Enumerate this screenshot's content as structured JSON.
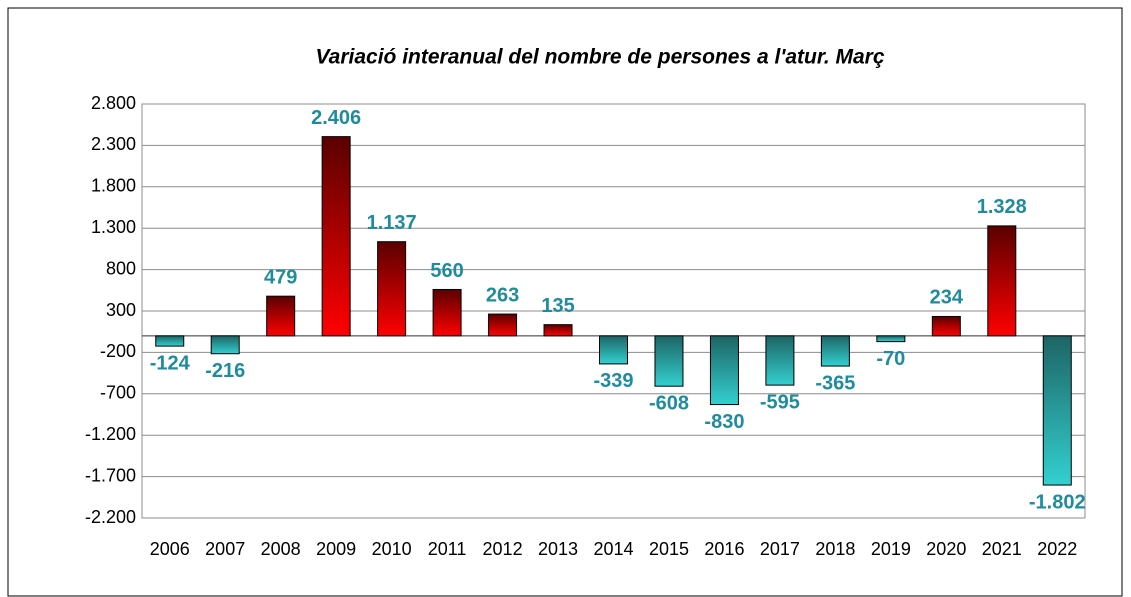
{
  "chart_data": {
    "type": "bar",
    "title": "Variació interanual del nombre de persones a l'atur. Març",
    "categories": [
      "2006",
      "2007",
      "2008",
      "2009",
      "2010",
      "2011",
      "2012",
      "2013",
      "2014",
      "2015",
      "2016",
      "2017",
      "2018",
      "2019",
      "2020",
      "2021",
      "2022"
    ],
    "values": [
      -124,
      -216,
      479,
      2406,
      1137,
      560,
      263,
      135,
      -339,
      -608,
      -830,
      -595,
      -365,
      -70,
      234,
      1328,
      -1802
    ],
    "value_labels": [
      "-124",
      "-216",
      "479",
      "2.406",
      "1.137",
      "560",
      "263",
      "135",
      "-339",
      "-608",
      "-830",
      "-595",
      "-365",
      "-70",
      "234",
      "1.328",
      "-1.802"
    ],
    "colors": {
      "positive": [
        "#5a0000",
        "#ff0000"
      ],
      "negative": [
        "#1d6464",
        "#33d0d0"
      ]
    },
    "label_color": "#1f8c9e",
    "ylim": [
      -2200,
      2800
    ],
    "yticks": [
      {
        "value": -2200,
        "label": "-2.200"
      },
      {
        "value": -1700,
        "label": "-1.700"
      },
      {
        "value": -1200,
        "label": "-1.200"
      },
      -700,
      -200,
      300,
      800,
      {
        "value": 1300,
        "label": "1.300"
      },
      {
        "value": 1800,
        "label": "1.800"
      },
      {
        "value": 2300,
        "label": "2.300"
      },
      {
        "value": 2800,
        "label": "2.800"
      }
    ],
    "grid": true
  }
}
